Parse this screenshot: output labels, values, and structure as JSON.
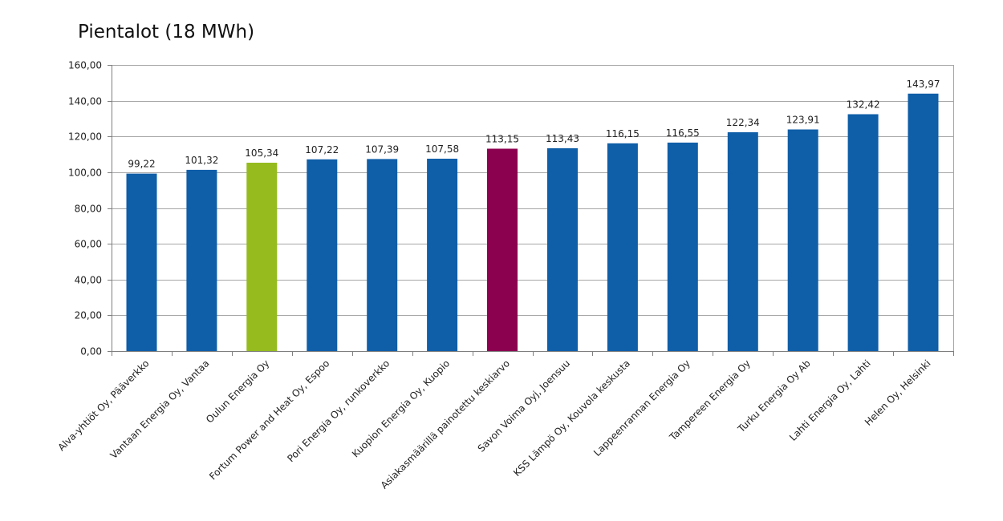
{
  "chart_data": {
    "type": "bar",
    "title": "Pientalot (18 MWh)",
    "xlabel": "",
    "ylabel": "",
    "ylim": [
      0,
      160
    ],
    "y_tick_step": 20,
    "y_tick_labels": [
      "0,00",
      "20,00",
      "40,00",
      "60,00",
      "80,00",
      "100,00",
      "120,00",
      "140,00",
      "160,00"
    ],
    "grid": true,
    "legend": "none",
    "categories": [
      "Alva-yhtiöt Oy, Pääverkko",
      "Vantaan Energia Oy, Vantaa",
      "Oulun Energia Oy",
      "Fortum Power and Heat Oy, Espoo",
      "Pori Energia Oy, runkoverkko",
      "Kuopion Energia Oy, Kuopio",
      "Asiakasmäärillä painotettu keskiarvo",
      "Savon Voima Oyj, Joensuu",
      "KSS Lämpö Oy, Kouvola keskusta",
      "Lappeenrannan Energia Oy",
      "Tampereen Energia Oy",
      "Turku Energia Oy Ab",
      "Lahti Energia Oy, Lahti",
      "Helen Oy, Helsinki"
    ],
    "values": [
      99.22,
      101.32,
      105.34,
      107.22,
      107.39,
      107.58,
      113.15,
      113.43,
      116.15,
      116.55,
      122.34,
      123.91,
      132.42,
      143.97
    ],
    "value_labels": [
      "99,22",
      "101,32",
      "105,34",
      "107,22",
      "107,39",
      "107,58",
      "113,15",
      "113,43",
      "116,15",
      "116,55",
      "122,34",
      "123,91",
      "132,42",
      "143,97"
    ],
    "colors": {
      "default": "#0f5ea8",
      "highlight": "#95bb1f",
      "average": "#8c0050",
      "grid": "#a6a6a6",
      "axis": "#7f7f7f"
    },
    "bar_colors": [
      "default",
      "default",
      "highlight",
      "default",
      "default",
      "default",
      "average",
      "default",
      "default",
      "default",
      "default",
      "default",
      "default",
      "default"
    ]
  }
}
